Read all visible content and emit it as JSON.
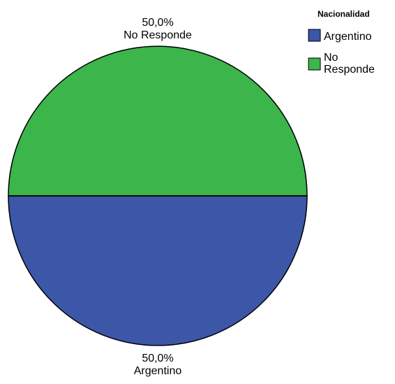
{
  "chart_data": {
    "type": "pie",
    "legend": {
      "title": "Nacionalidad",
      "placement": "top-right",
      "entries": [
        {
          "label": "Argentino",
          "color": "#3c56a8"
        },
        {
          "label": "No Responde",
          "color": "#3cb54a"
        }
      ]
    },
    "slices": [
      {
        "label": "Argentino",
        "value": 50.0,
        "percent_label": "50,0%",
        "color": "#3c56a8"
      },
      {
        "label": "No Responde",
        "value": 50.0,
        "percent_label": "50,0%",
        "color": "#3cb54a"
      }
    ]
  }
}
